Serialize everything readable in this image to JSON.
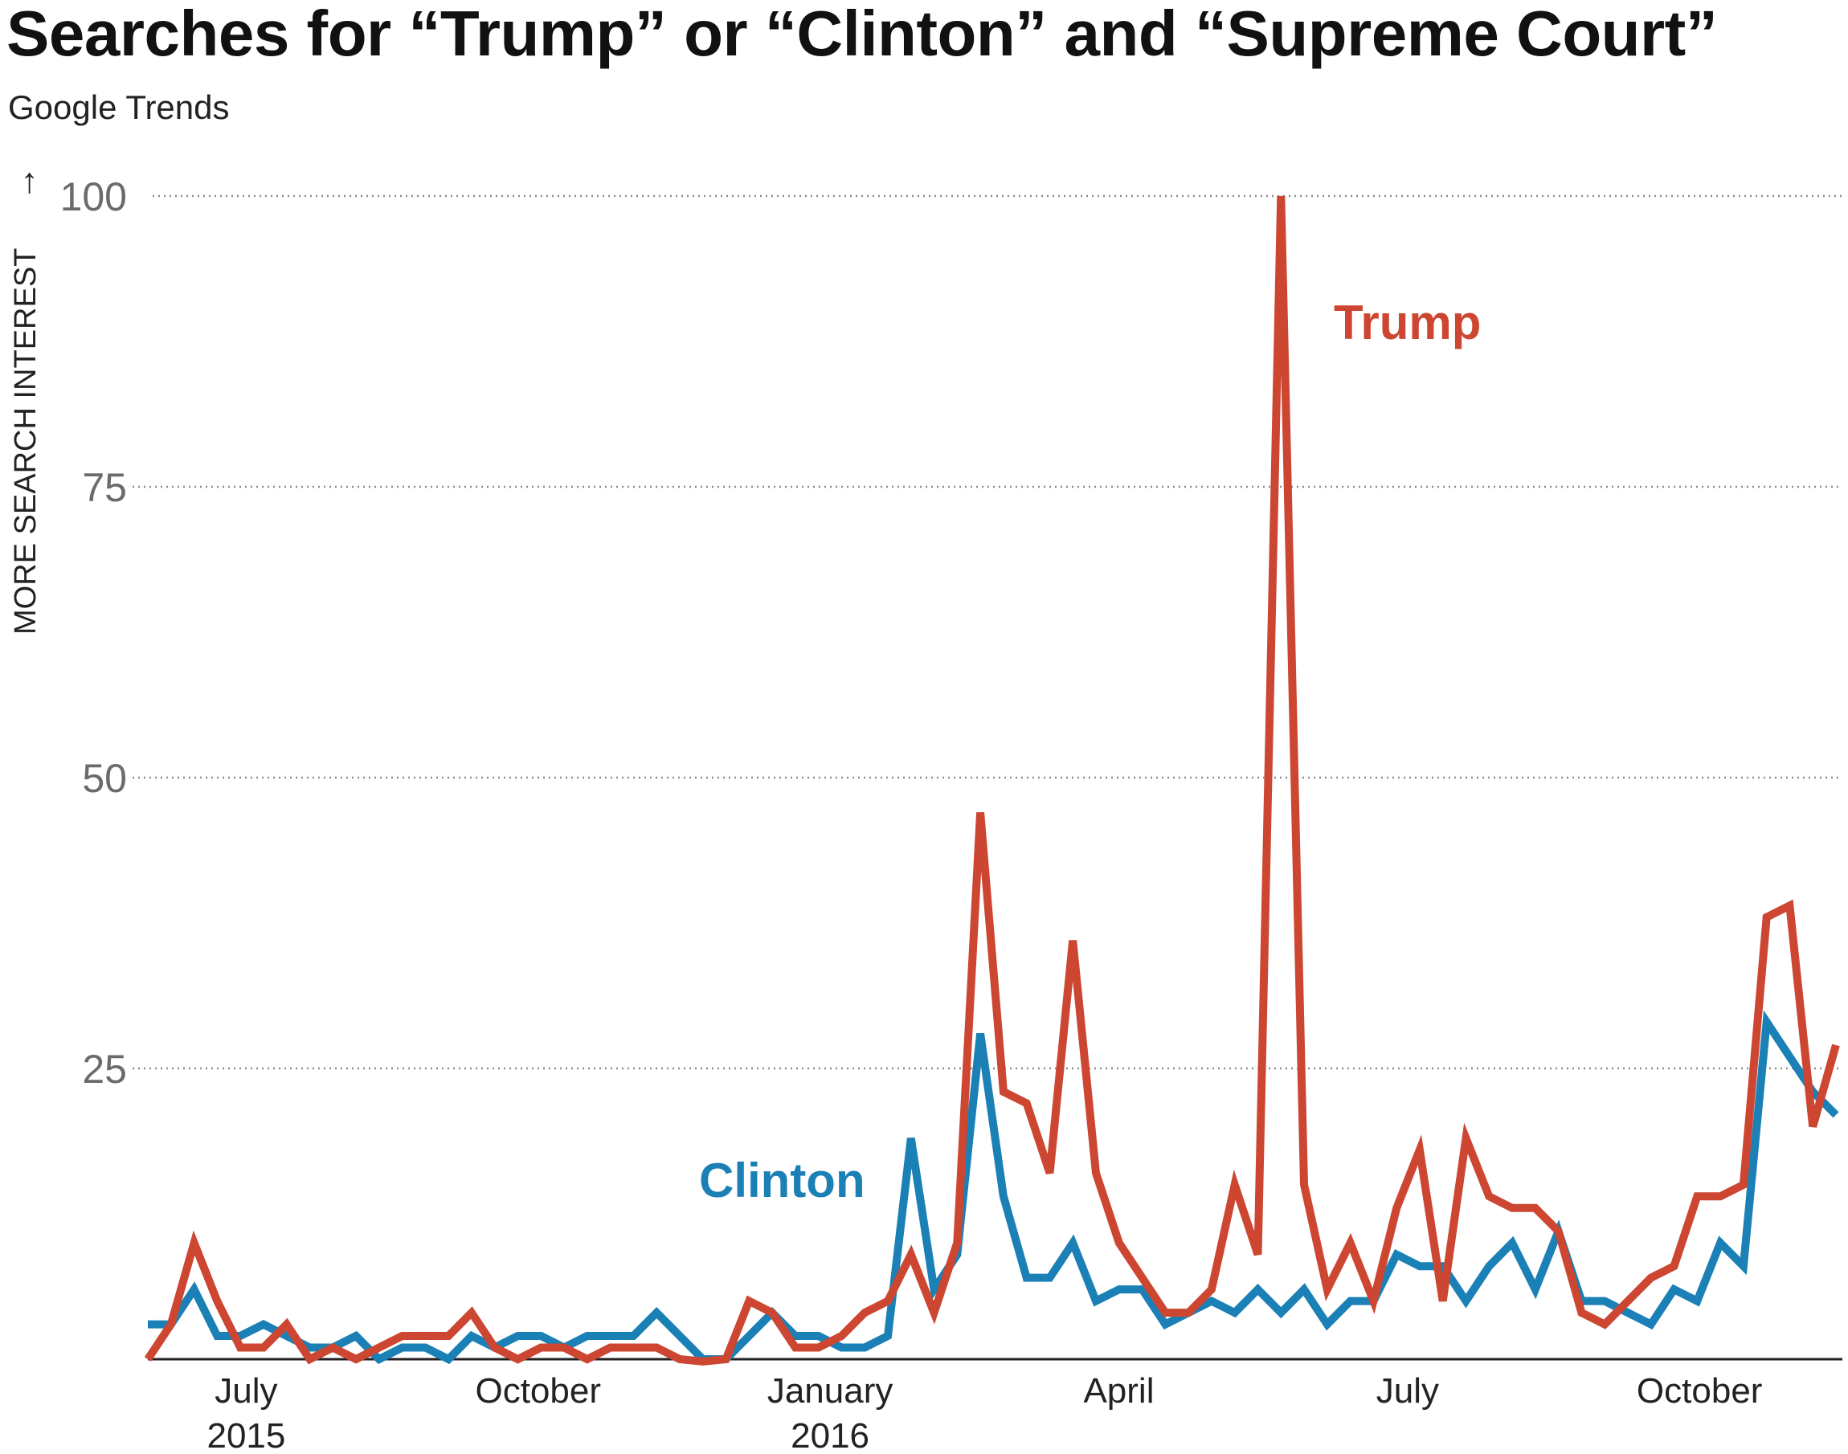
{
  "header": {
    "title": "Searches for “Trump” or “Clinton” and “Supreme Court”",
    "subtitle": "Google Trends"
  },
  "chart_data": {
    "type": "line",
    "title": "Searches for “Trump” or “Clinton” and “Supreme Court”",
    "subtitle": "Google Trends",
    "ylabel": "MORE SEARCH INTEREST",
    "ylabel_arrow": "→",
    "ylim": [
      0,
      100
    ],
    "yticks": [
      25,
      50,
      75,
      100
    ],
    "grid": true,
    "x_start": "2015-05-31",
    "x_end": "2016-11-13",
    "x_interval": "weekly",
    "xticks": [
      {
        "date": "2015-07-01",
        "label": "July",
        "sublabel": "2015"
      },
      {
        "date": "2015-10-01",
        "label": "October",
        "sublabel": ""
      },
      {
        "date": "2016-01-01",
        "label": "January",
        "sublabel": "2016"
      },
      {
        "date": "2016-04-01",
        "label": "April",
        "sublabel": ""
      },
      {
        "date": "2016-07-01",
        "label": "July",
        "sublabel": ""
      },
      {
        "date": "2016-10-01",
        "label": "October",
        "sublabel": ""
      }
    ],
    "series": [
      {
        "name": "Clinton",
        "color": "#1a80b6",
        "values": [
          3,
          3,
          6,
          2,
          2,
          3,
          2,
          1,
          1,
          2,
          0,
          1,
          1,
          0,
          2,
          1,
          2,
          2,
          1,
          2,
          2,
          2,
          4,
          2,
          0,
          0,
          2,
          4,
          2,
          2,
          1,
          1,
          2,
          19,
          6,
          9,
          28,
          14,
          7,
          7,
          10,
          5,
          6,
          6,
          3,
          4,
          5,
          4,
          6,
          4,
          6,
          3,
          5,
          5,
          9,
          8,
          8,
          5,
          8,
          10,
          6,
          11,
          5,
          5,
          4,
          3,
          6,
          5,
          10,
          8,
          29,
          26,
          23,
          21
        ]
      },
      {
        "name": "Trump",
        "color": "#cc4631",
        "values": [
          0,
          3,
          10,
          5,
          1,
          1,
          3,
          0,
          1,
          0,
          1,
          2,
          2,
          2,
          4,
          1,
          0,
          1,
          1,
          0,
          1,
          1,
          1,
          0,
          -0.2,
          0,
          5,
          4,
          1,
          1,
          2,
          4,
          5,
          9,
          4,
          10,
          47,
          23,
          22,
          16,
          36,
          16,
          10,
          7,
          4,
          4,
          6,
          15,
          9,
          100,
          15,
          6,
          10,
          5,
          13,
          18,
          5,
          19,
          14,
          13,
          13,
          11,
          4,
          3,
          5,
          7,
          8,
          14,
          14,
          15,
          38,
          39,
          20,
          27
        ]
      }
    ],
    "annotations": [
      "Trump",
      "Clinton"
    ]
  }
}
